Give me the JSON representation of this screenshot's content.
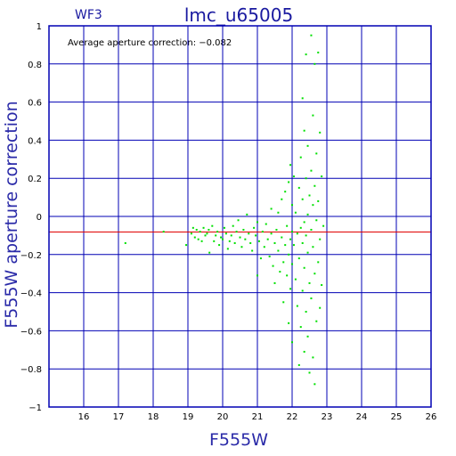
{
  "chart_data": {
    "type": "scatter",
    "title": "lmc_u65005",
    "chip_label": "WF3",
    "annotation": "Average aperture correction:  −0.082",
    "xlabel": "F555W",
    "ylabel": "F555W aperture correction",
    "xlim": [
      15,
      26
    ],
    "ylim": [
      -1,
      1
    ],
    "x_ticks": [
      "16",
      "17",
      "18",
      "19",
      "20",
      "21",
      "22",
      "23",
      "24",
      "25",
      "26"
    ],
    "y_ticks": [
      "−1",
      "−0.8",
      "−0.6",
      "−0.4",
      "−0.2",
      "0",
      "0.2",
      "0.4",
      "0.6",
      "0.8",
      "1"
    ],
    "grid": true,
    "reference_line": {
      "y": -0.082
    },
    "colors": {
      "axes": "#0000b4",
      "points": "#00e000",
      "reference_line": "#e00000",
      "text": "#1a1aa0"
    },
    "points": [
      [
        17.2,
        -0.14
      ],
      [
        18.3,
        -0.08
      ],
      [
        18.95,
        -0.15
      ],
      [
        19.1,
        -0.09
      ],
      [
        19.15,
        -0.06
      ],
      [
        19.2,
        -0.11
      ],
      [
        19.25,
        -0.07
      ],
      [
        19.3,
        -0.12
      ],
      [
        19.35,
        -0.08
      ],
      [
        19.4,
        -0.13
      ],
      [
        19.45,
        -0.06
      ],
      [
        19.5,
        -0.1
      ],
      [
        19.55,
        -0.09
      ],
      [
        19.6,
        -0.07
      ],
      [
        19.62,
        -0.19
      ],
      [
        19.7,
        -0.05
      ],
      [
        19.75,
        -0.13
      ],
      [
        19.8,
        -0.1
      ],
      [
        19.85,
        -0.08
      ],
      [
        19.9,
        -0.15
      ],
      [
        19.95,
        -0.11
      ],
      [
        20.0,
        -0.12
      ],
      [
        20.05,
        -0.06
      ],
      [
        20.1,
        -0.09
      ],
      [
        20.15,
        -0.17
      ],
      [
        20.2,
        -0.13
      ],
      [
        20.25,
        -0.1
      ],
      [
        20.3,
        -0.05
      ],
      [
        20.35,
        -0.14
      ],
      [
        20.4,
        -0.08
      ],
      [
        20.45,
        -0.02
      ],
      [
        20.5,
        -0.11
      ],
      [
        20.55,
        -0.16
      ],
      [
        20.6,
        -0.07
      ],
      [
        20.65,
        -0.12
      ],
      [
        20.7,
        0.01
      ],
      [
        20.75,
        -0.09
      ],
      [
        20.8,
        -0.14
      ],
      [
        20.85,
        -0.18
      ],
      [
        20.9,
        -0.06
      ],
      [
        20.95,
        -0.1
      ],
      [
        21.0,
        -0.03
      ],
      [
        21.0,
        -0.31
      ],
      [
        21.05,
        -0.13
      ],
      [
        21.1,
        -0.22
      ],
      [
        21.15,
        -0.08
      ],
      [
        21.2,
        -0.16
      ],
      [
        21.25,
        -0.04
      ],
      [
        21.3,
        -0.12
      ],
      [
        21.35,
        -0.21
      ],
      [
        21.4,
        -0.09
      ],
      [
        21.4,
        0.04
      ],
      [
        21.45,
        -0.26
      ],
      [
        21.5,
        -0.14
      ],
      [
        21.5,
        -0.35
      ],
      [
        21.55,
        -0.07
      ],
      [
        21.6,
        -0.18
      ],
      [
        21.6,
        0.02
      ],
      [
        21.65,
        -0.29
      ],
      [
        21.7,
        -0.11
      ],
      [
        21.7,
        0.09
      ],
      [
        21.75,
        -0.24
      ],
      [
        21.75,
        -0.45
      ],
      [
        21.8,
        -0.15
      ],
      [
        21.8,
        0.13
      ],
      [
        21.85,
        -0.31
      ],
      [
        21.85,
        -0.05
      ],
      [
        21.9,
        -0.2
      ],
      [
        21.9,
        0.18
      ],
      [
        21.9,
        -0.56
      ],
      [
        21.95,
        -0.12
      ],
      [
        21.95,
        0.27
      ],
      [
        21.95,
        -0.38
      ],
      [
        22.0,
        -0.08
      ],
      [
        22.0,
        0.06
      ],
      [
        22.0,
        -0.25
      ],
      [
        22.0,
        -0.66
      ],
      [
        22.05,
        0.21
      ],
      [
        22.05,
        -0.15
      ],
      [
        22.1,
        -0.33
      ],
      [
        22.1,
        0.02
      ],
      [
        22.15,
        -0.47
      ],
      [
        22.15,
        -0.09
      ],
      [
        22.2,
        0.15
      ],
      [
        22.2,
        -0.22
      ],
      [
        22.2,
        -0.78
      ],
      [
        22.25,
        0.31
      ],
      [
        22.25,
        -0.06
      ],
      [
        22.25,
        -0.58
      ],
      [
        22.3,
        0.62
      ],
      [
        22.3,
        0.09
      ],
      [
        22.3,
        -0.14
      ],
      [
        22.3,
        -0.39
      ],
      [
        22.35,
        0.45
      ],
      [
        22.35,
        -0.03
      ],
      [
        22.35,
        -0.27
      ],
      [
        22.35,
        -0.71
      ],
      [
        22.4,
        0.85
      ],
      [
        22.4,
        0.2
      ],
      [
        22.4,
        -0.1
      ],
      [
        22.4,
        -0.5
      ],
      [
        22.45,
        0.37
      ],
      [
        22.45,
        0.01
      ],
      [
        22.45,
        -0.19
      ],
      [
        22.45,
        -0.63
      ],
      [
        22.5,
        0.11
      ],
      [
        22.5,
        -0.35
      ],
      [
        22.5,
        -0.82
      ],
      [
        22.55,
        0.95
      ],
      [
        22.55,
        0.24
      ],
      [
        22.55,
        -0.07
      ],
      [
        22.55,
        -0.43
      ],
      [
        22.6,
        0.53
      ],
      [
        22.6,
        0.06
      ],
      [
        22.6,
        -0.16
      ],
      [
        22.6,
        -0.74
      ],
      [
        22.65,
        0.8
      ],
      [
        22.65,
        0.16
      ],
      [
        22.65,
        -0.3
      ],
      [
        22.65,
        -0.88
      ],
      [
        22.7,
        0.33
      ],
      [
        22.7,
        -0.02
      ],
      [
        22.7,
        -0.55
      ],
      [
        22.75,
        0.86
      ],
      [
        22.75,
        0.08
      ],
      [
        22.75,
        -0.24
      ],
      [
        22.8,
        0.44
      ],
      [
        22.8,
        -0.12
      ],
      [
        22.8,
        -0.48
      ],
      [
        22.85,
        0.21
      ],
      [
        22.85,
        -0.36
      ],
      [
        22.9,
        -0.05
      ]
    ]
  }
}
